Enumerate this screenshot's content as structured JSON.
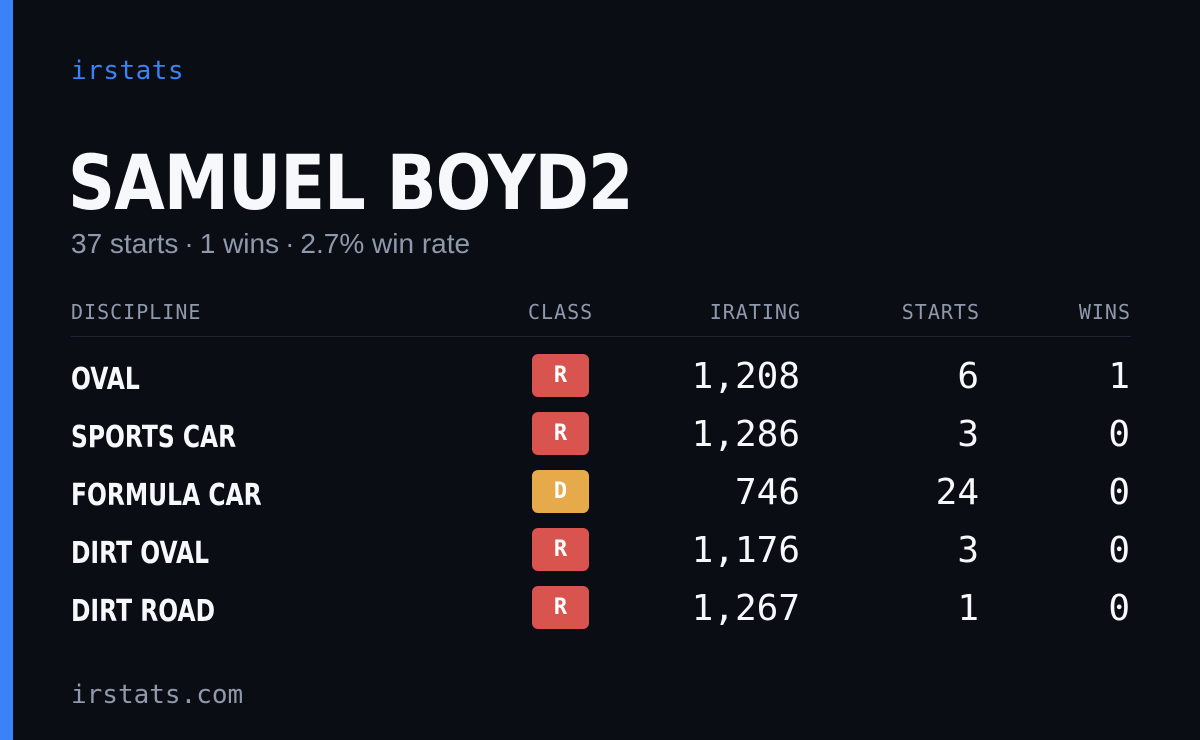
{
  "brand": "irstats",
  "driver": {
    "name": "SAMUEL BOYD2",
    "starts_text": "37 starts",
    "wins_text": "1 wins",
    "win_rate_text": "2.7% win rate",
    "separator": "·"
  },
  "table": {
    "headers": {
      "discipline": "DISCIPLINE",
      "class": "CLASS",
      "irating": "IRATING",
      "starts": "STARTS",
      "wins": "WINS"
    },
    "rows": [
      {
        "discipline": "OVAL",
        "class": "R",
        "irating": "1,208",
        "starts": "6",
        "wins": "1"
      },
      {
        "discipline": "SPORTS CAR",
        "class": "R",
        "irating": "1,286",
        "starts": "3",
        "wins": "0"
      },
      {
        "discipline": "FORMULA CAR",
        "class": "D",
        "irating": "746",
        "starts": "24",
        "wins": "0"
      },
      {
        "discipline": "DIRT OVAL",
        "class": "R",
        "irating": "1,176",
        "starts": "3",
        "wins": "0"
      },
      {
        "discipline": "DIRT ROAD",
        "class": "R",
        "irating": "1,267",
        "starts": "1",
        "wins": "0"
      }
    ]
  },
  "footer": "irstats.com",
  "colors": {
    "accent": "#3b82f6",
    "background": "#0a0d14",
    "class_r": "#d9534f",
    "class_d": "#e6aa4a",
    "muted_text": "#8f99ab"
  }
}
